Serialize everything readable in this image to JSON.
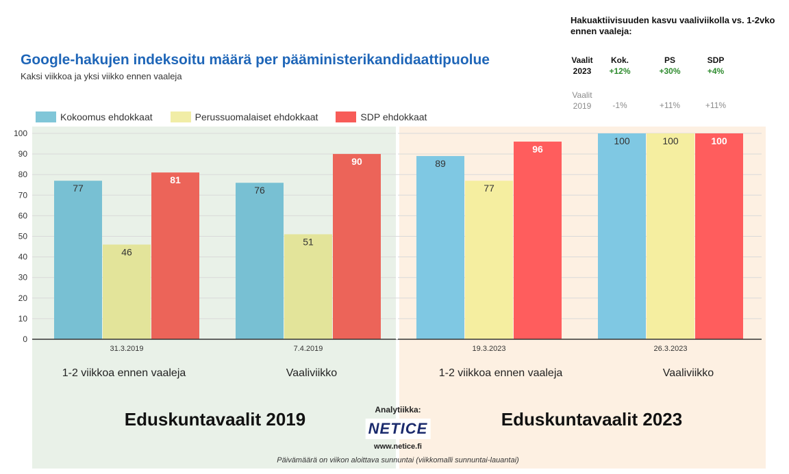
{
  "title": "Google-hakujen indeksoitu määrä per pääministerikandidaattipuolue",
  "subtitle": "Kaksi viikkoa ja yksi viikko ennen vaaleja",
  "side_table": {
    "title": "Hakuaktiivisuuden kasvu vaaliviikolla vs. 1-2vko ennen vaaleja:",
    "headers": [
      "Kok.",
      "PS",
      "SDP"
    ],
    "rows": [
      {
        "label_1": "Vaalit",
        "label_2": "2023",
        "values": [
          "+12%",
          "+30%",
          "+4%"
        ]
      },
      {
        "label_1": "Vaalit",
        "label_2": "2019",
        "values": [
          "-1%",
          "+11%",
          "+11%"
        ]
      }
    ]
  },
  "chart_data": {
    "type": "bar",
    "categories": [
      "31.3.2019",
      "7.4.2019",
      "19.3.2023",
      "26.3.2023"
    ],
    "series": [
      {
        "name": "Kokoomus ehdokkaat",
        "values": [
          77,
          76,
          89,
          100
        ]
      },
      {
        "name": "Perussuomalaiset ehdokkaat",
        "values": [
          46,
          51,
          77,
          100
        ]
      },
      {
        "name": "SDP ehdokkaat",
        "values": [
          81,
          90,
          96,
          100
        ]
      }
    ],
    "ylim": [
      0,
      100
    ],
    "yticks": [
      0,
      10,
      20,
      30,
      40,
      50,
      60,
      70,
      80,
      90,
      100
    ],
    "grid": true,
    "legend_position": "top-left"
  },
  "colors": {
    "2019": [
      "#78c0d3",
      "#e3e49a",
      "#ec6459"
    ],
    "2023": [
      "#7fc8e3",
      "#f5eea0",
      "#ff5d5d"
    ]
  },
  "period_labels": [
    "1-2 viikkoa ennen vaaleja",
    "Vaaliviikko",
    "1-2 viikkoa ennen vaaleja",
    "Vaaliviikko"
  ],
  "election_labels": [
    "Eduskuntavaalit 2019",
    "Eduskuntavaalit 2023"
  ],
  "footer": {
    "analytics_label": "Analytiikka:",
    "logo_text": "NETICE",
    "url": "www.netice.fi",
    "note": "Päivämäärä on viikon aloittava sunnuntai (viikkomalli sunnuntai-lauantai)"
  }
}
